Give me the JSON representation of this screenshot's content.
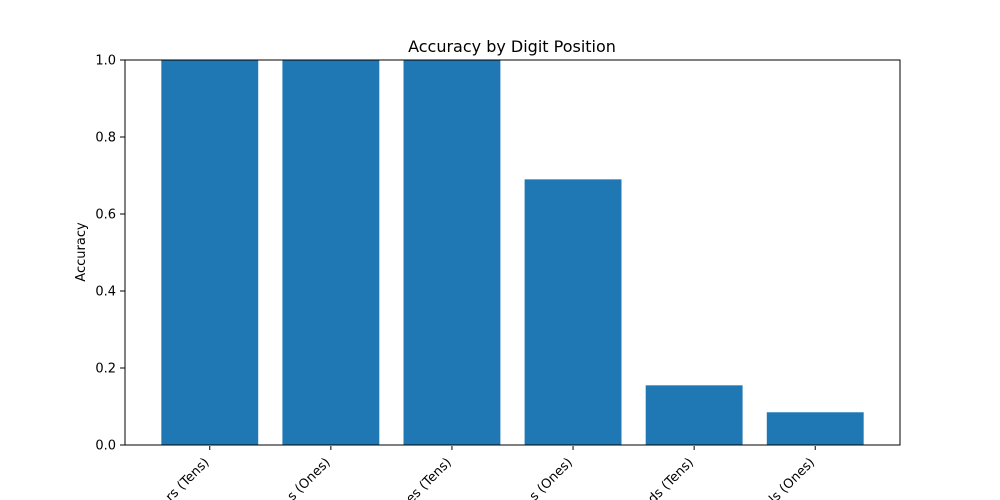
{
  "chart_data": {
    "type": "bar",
    "title": "Accuracy by Digit Position",
    "xlabel": "",
    "ylabel": "Accuracy",
    "categories": [
      "rs (Tens)",
      "s (Ones)",
      "es (Tens)",
      "s (Ones)",
      "ds (Tens)",
      "ls (Ones)"
    ],
    "values": [
      1.0,
      1.0,
      1.0,
      0.69,
      0.155,
      0.085
    ],
    "ylim": [
      0,
      1.0
    ],
    "yticks": [
      "0.0",
      "0.2",
      "0.4",
      "0.6",
      "0.8",
      "1.0"
    ],
    "ytick_values": [
      0.0,
      0.2,
      0.4,
      0.6,
      0.8,
      1.0
    ],
    "bar_color": "#1f77b4",
    "grid": false,
    "legend": false
  }
}
